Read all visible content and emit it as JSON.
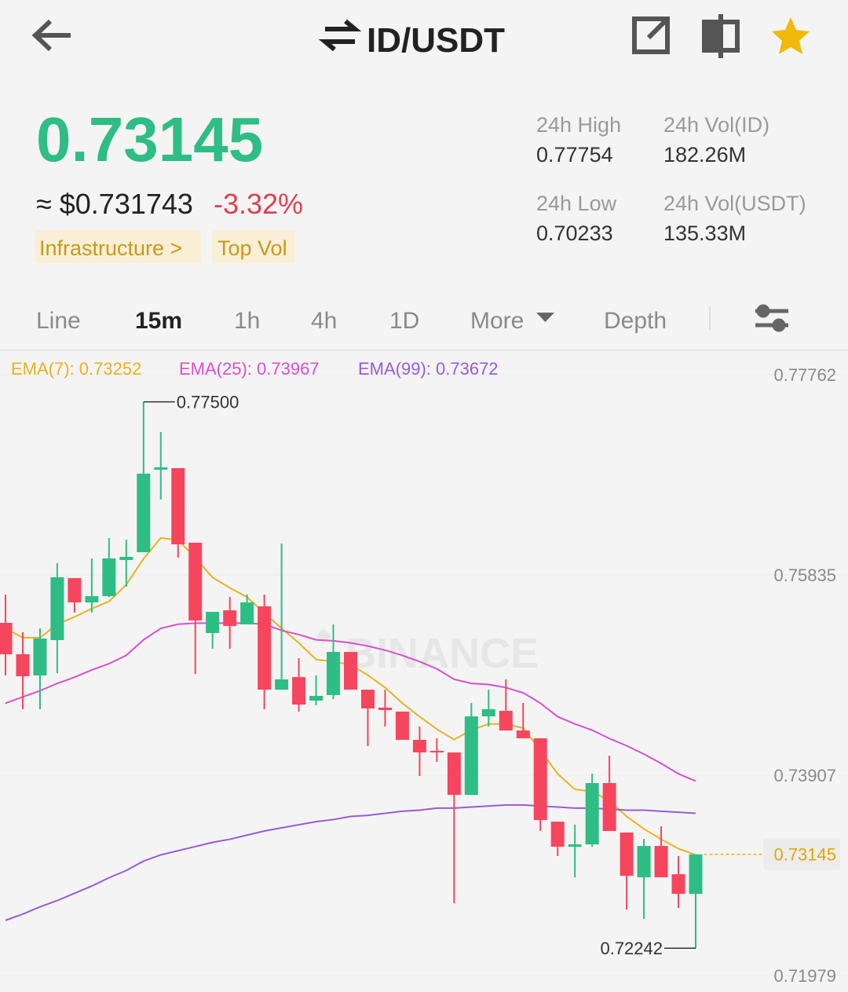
{
  "header": {
    "title": "ID/USDT"
  },
  "price": {
    "last": "0.73145",
    "approx": "≈ $0.731743",
    "change": "-3.32%",
    "tags": [
      "Infrastructure >",
      "Top Vol"
    ]
  },
  "stats": [
    {
      "label": "24h High",
      "value": "0.77754"
    },
    {
      "label": "24h Vol(ID)",
      "value": "182.26M"
    },
    {
      "label": "24h Low",
      "value": "0.70233"
    },
    {
      "label": "24h Vol(USDT)",
      "value": "135.33M"
    }
  ],
  "tabs": [
    "Line",
    "15m",
    "1h",
    "4h",
    "1D",
    "More",
    "Depth"
  ],
  "chart_data": {
    "type": "candlestick",
    "watermark": "BINANCE",
    "open": [
      0.75373,
      0.75071,
      0.74867,
      0.75207,
      0.75804,
      0.7557,
      0.7563,
      0.75978,
      0.76053,
      0.76847,
      0.76862,
      0.76144,
      0.75275,
      0.75494,
      0.75358,
      0.75532,
      0.7473,
      0.74851,
      0.74625,
      0.74678,
      0.75093,
      0.7473,
      0.74557,
      0.74519,
      0.74247,
      0.74141,
      0.74126,
      0.73717,
      0.74473,
      0.74526,
      0.74337,
      0.74262,
      0.7346,
      0.73218,
      0.73241,
      0.73831,
      0.73355,
      0.72924,
      0.73226,
      0.72954,
      0.72765
    ],
    "high": [
      0.75645,
      0.75282,
      0.7532,
      0.75948,
      0.75804,
      0.75993,
      0.7619,
      0.76174,
      0.775,
      0.7721,
      0.76862,
      0.76144,
      0.75479,
      0.75622,
      0.75645,
      0.75645,
      0.76137,
      0.75033,
      0.74867,
      0.75358,
      0.75093,
      0.7473,
      0.7473,
      0.74519,
      0.74375,
      0.74262,
      0.74126,
      0.74602,
      0.7473,
      0.74829,
      0.74602,
      0.74262,
      0.7346,
      0.7343,
      0.73922,
      0.74095,
      0.73355,
      0.73294,
      0.73415,
      0.73128,
      0.73145
    ],
    "low": [
      0.74867,
      0.74542,
      0.74542,
      0.74889,
      0.75471,
      0.75471,
      0.75622,
      0.75721,
      0.76053,
      0.7656,
      0.76001,
      0.74881,
      0.75124,
      0.75124,
      0.75358,
      0.74542,
      0.7473,
      0.74519,
      0.74579,
      0.7464,
      0.7473,
      0.74186,
      0.74375,
      0.74247,
      0.73899,
      0.74035,
      0.72674,
      0.73717,
      0.74375,
      0.74337,
      0.74262,
      0.7337,
      0.73128,
      0.72924,
      0.73218,
      0.7337,
      0.72614,
      0.72523,
      0.72924,
      0.72629,
      0.72242
    ],
    "close": [
      0.75071,
      0.74859,
      0.75222,
      0.75812,
      0.7557,
      0.7563,
      0.75993,
      0.76008,
      0.76809,
      0.7687,
      0.76129,
      0.75396,
      0.75479,
      0.75343,
      0.7557,
      0.7473,
      0.74829,
      0.74587,
      0.7467,
      0.75093,
      0.7473,
      0.74549,
      0.74534,
      0.74247,
      0.74126,
      0.74126,
      0.73717,
      0.74473,
      0.74542,
      0.74337,
      0.74262,
      0.73475,
      0.73218,
      0.73241,
      0.73831,
      0.7337,
      0.72939,
      0.73226,
      0.72924,
      0.72765,
      0.73145
    ],
    "up_color": "#2ebd85",
    "down_color": "#f6465d",
    "series": [
      {
        "name": "EMA(7): 0.73252",
        "color": "#e8b21e",
        "values": [
          0.7532,
          0.7523,
          0.7523,
          0.7536,
          0.7543,
          0.7551,
          0.7558,
          0.7574,
          0.7599,
          0.7619,
          0.7617,
          0.76,
          0.7581,
          0.7571,
          0.7562,
          0.7547,
          0.7532,
          0.7518,
          0.7502,
          0.75,
          0.7497,
          0.7487,
          0.7475,
          0.746,
          0.7447,
          0.7435,
          0.7425,
          0.7434,
          0.744,
          0.744,
          0.7436,
          0.7415,
          0.7392,
          0.7377,
          0.7375,
          0.7366,
          0.7351,
          0.7339,
          0.7329,
          0.732,
          0.7314
        ]
      },
      {
        "name": "EMA(25): 0.73967",
        "color": "#d94fcf",
        "values": [
          0.746,
          0.7466,
          0.7472,
          0.7479,
          0.7485,
          0.7492,
          0.7498,
          0.7506,
          0.7521,
          0.7532,
          0.7536,
          0.7537,
          0.7537,
          0.7537,
          0.7537,
          0.7536,
          0.753,
          0.7526,
          0.7521,
          0.752,
          0.7518,
          0.7515,
          0.7511,
          0.7506,
          0.75,
          0.7493,
          0.7483,
          0.7479,
          0.7478,
          0.7475,
          0.747,
          0.746,
          0.7447,
          0.744,
          0.7434,
          0.7426,
          0.7419,
          0.7411,
          0.7402,
          0.7392,
          0.7385
        ]
      },
      {
        "name": "EMA(99): 0.73672",
        "color": "#9a5bd3",
        "values": [
          0.7251,
          0.7257,
          0.7264,
          0.727,
          0.7277,
          0.7284,
          0.7292,
          0.7299,
          0.7308,
          0.7314,
          0.7318,
          0.7322,
          0.7326,
          0.7329,
          0.7333,
          0.7337,
          0.734,
          0.7343,
          0.7346,
          0.7348,
          0.7351,
          0.7352,
          0.7354,
          0.7356,
          0.7357,
          0.7359,
          0.7359,
          0.736,
          0.7361,
          0.7362,
          0.7362,
          0.7361,
          0.736,
          0.7359,
          0.7359,
          0.7358,
          0.7357,
          0.7357,
          0.7356,
          0.7355,
          0.7354
        ]
      }
    ],
    "annotations": [
      {
        "value": 0.775,
        "label": "0.77500"
      },
      {
        "value": 0.72242,
        "label": "0.72242"
      }
    ],
    "last_price": 0.73145,
    "ylim": [
      0.71858,
      0.77966
    ],
    "yticks": [
      0.77762,
      0.75835,
      0.73907,
      0.71979
    ],
    "grid": true
  }
}
